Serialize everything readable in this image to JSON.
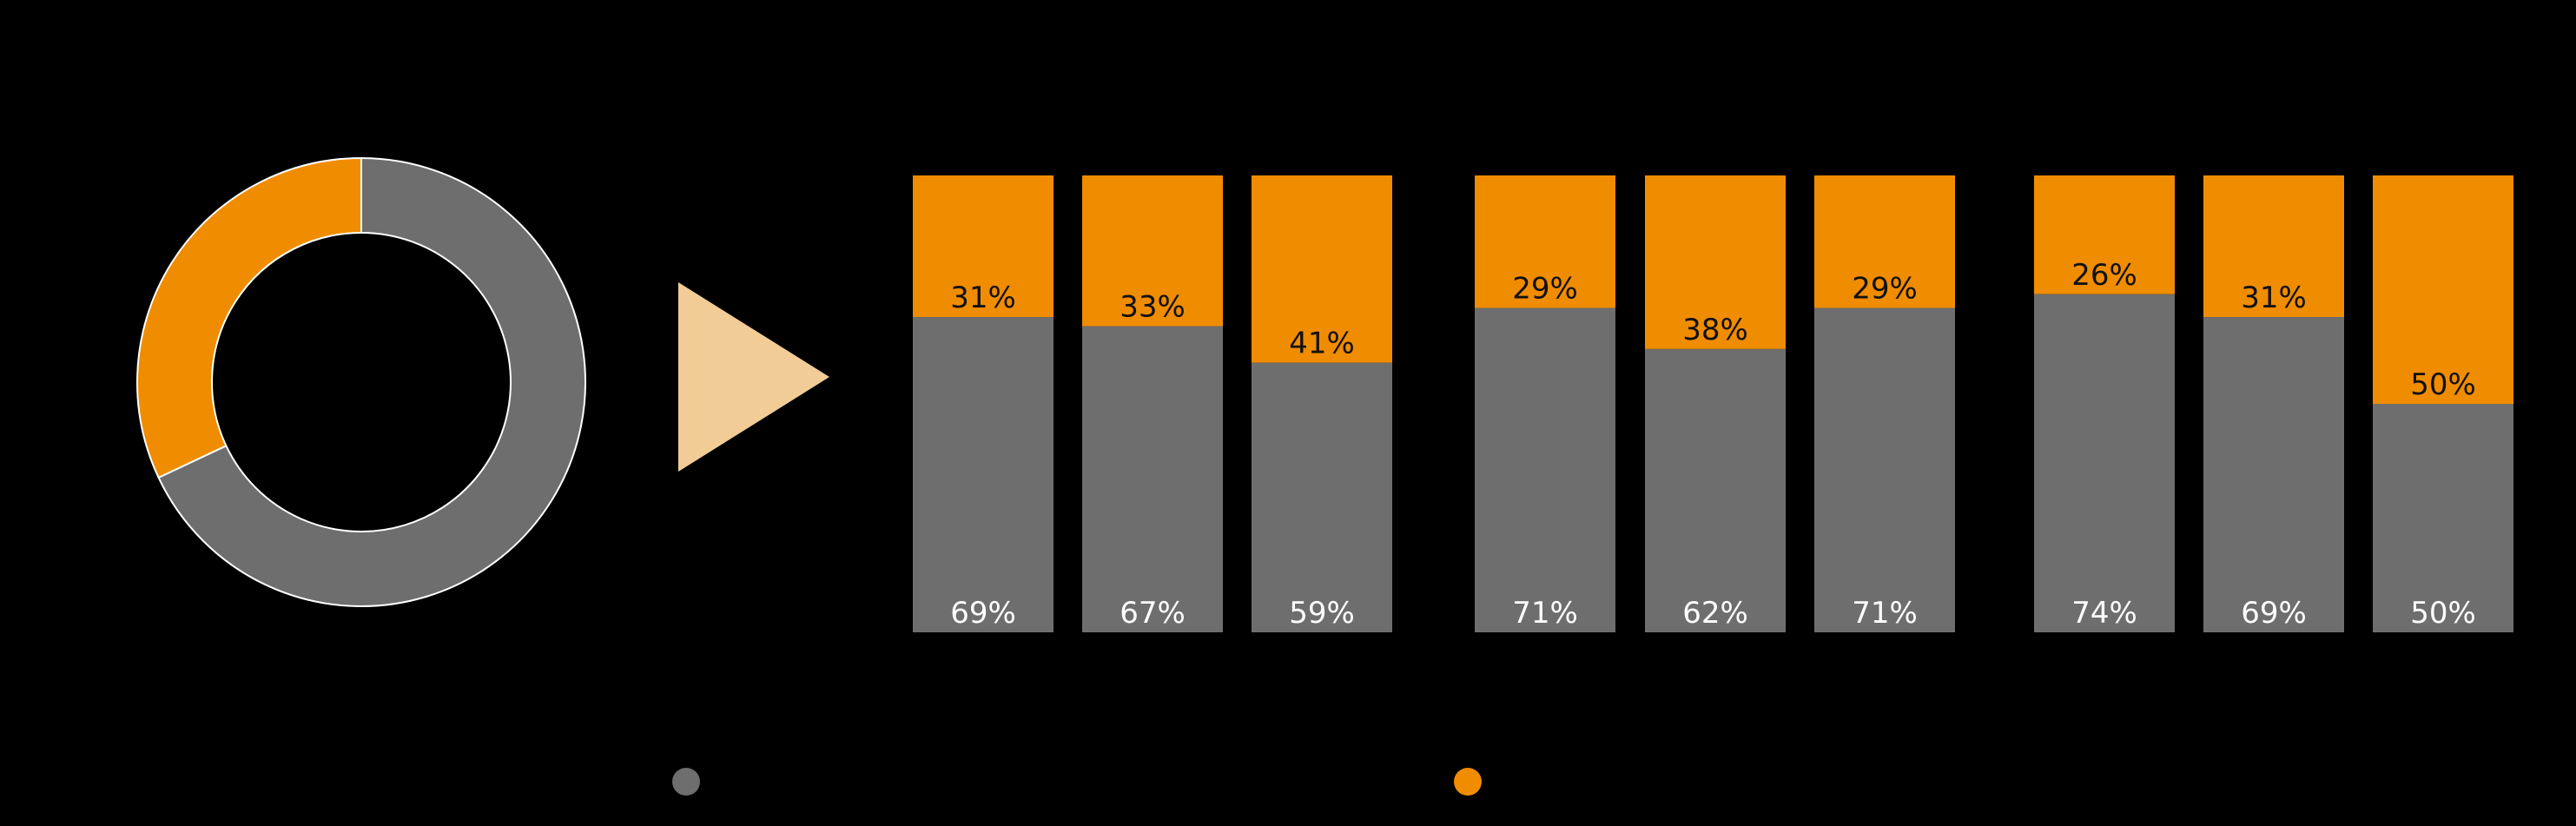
{
  "chart_data": [
    {
      "type": "pie",
      "variant": "donut",
      "slices": [
        {
          "name": "",
          "value": 68,
          "color": "#6e6e6e"
        },
        {
          "name": "",
          "value": 32,
          "color": "#f08c00"
        }
      ]
    },
    {
      "type": "bar",
      "stacked": true,
      "normalized": true,
      "groups": [
        {
          "bars": [
            0,
            1,
            2
          ]
        },
        {
          "bars": [
            3,
            4,
            5
          ]
        },
        {
          "bars": [
            6,
            7,
            8
          ]
        }
      ],
      "categories": [
        "",
        "",
        "",
        "",
        "",
        "",
        "",
        "",
        ""
      ],
      "series": [
        {
          "color": "#6e6e6e",
          "values": [
            69,
            67,
            59,
            71,
            62,
            71,
            74,
            69,
            50
          ],
          "labels": [
            "69%",
            "67%",
            "59%",
            "71%",
            "62%",
            "71%",
            "74%",
            "69%",
            "50%"
          ]
        },
        {
          "color": "#f08c00",
          "values": [
            31,
            33,
            41,
            29,
            38,
            29,
            26,
            31,
            50
          ],
          "labels": [
            "31%",
            "33%",
            "41%",
            "29%",
            "38%",
            "29%",
            "26%",
            "31%",
            "50%"
          ]
        }
      ],
      "ylim": [
        0,
        100
      ]
    }
  ],
  "legend": {
    "items": [
      {
        "color": "#6e6e6e",
        "label": ""
      },
      {
        "color": "#f08c00",
        "label": ""
      }
    ]
  },
  "arrow": {
    "color": "#f2cc96"
  }
}
